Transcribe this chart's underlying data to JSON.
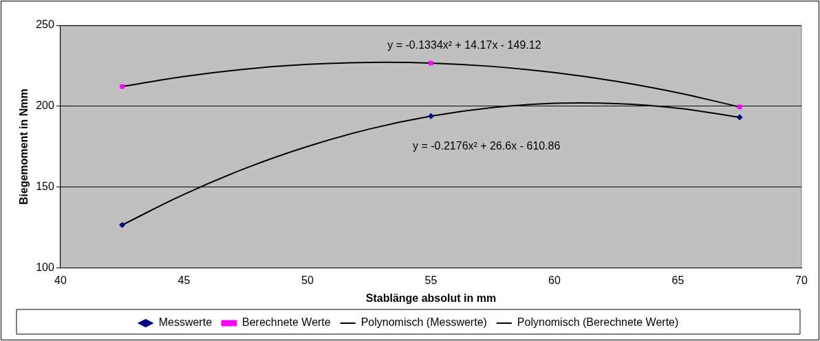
{
  "chart_data": {
    "type": "scatter",
    "xlabel": "Stablänge absolut in mm",
    "ylabel": "Biegemoment in Nmm",
    "xlim": [
      40,
      70
    ],
    "xticks": [
      40,
      45,
      50,
      55,
      60,
      65,
      70
    ],
    "ylim": [
      100,
      250
    ],
    "yticks": [
      100,
      150,
      200,
      250
    ],
    "grid": "y",
    "legend": "bottom",
    "series": [
      {
        "name": "Messwerte",
        "color": "#000080",
        "marker": "diamond",
        "x": [
          42.5,
          55,
          67.5
        ],
        "values": [
          126.6,
          193.9,
          193.2
        ]
      },
      {
        "name": "Berechnete Werte",
        "color": "#ff00ff",
        "marker": "square",
        "x": [
          42.5,
          55,
          67.5
        ],
        "values": [
          212.2,
          226.7,
          199.6
        ]
      },
      {
        "name": "Polynomisch (Messwerte)",
        "type": "line",
        "color": "#000000",
        "marker": "none",
        "x": [
          42.5,
          45,
          47.5,
          50,
          52.5,
          55,
          57.5,
          60,
          62.5,
          65,
          67.5
        ],
        "values": [
          126.6,
          145.5,
          161.7,
          175.1,
          185.9,
          193.9,
          199.2,
          201.8,
          201.6,
          198.8,
          193.2
        ]
      },
      {
        "name": "Polynomisch (Berechnete Werte)",
        "type": "line",
        "color": "#000000",
        "marker": "none",
        "x": [
          42.5,
          45,
          47.5,
          50,
          52.5,
          55,
          57.5,
          60,
          62.5,
          65,
          67.5
        ],
        "values": [
          212.2,
          218.4,
          223.0,
          225.9,
          227.1,
          226.7,
          224.6,
          220.8,
          215.4,
          208.3,
          199.6
        ]
      }
    ],
    "annotations": [
      "y = -0.1334x² + 14.17x - 149.12",
      "y = -0.2176x² + 26.6x - 610.86"
    ]
  }
}
